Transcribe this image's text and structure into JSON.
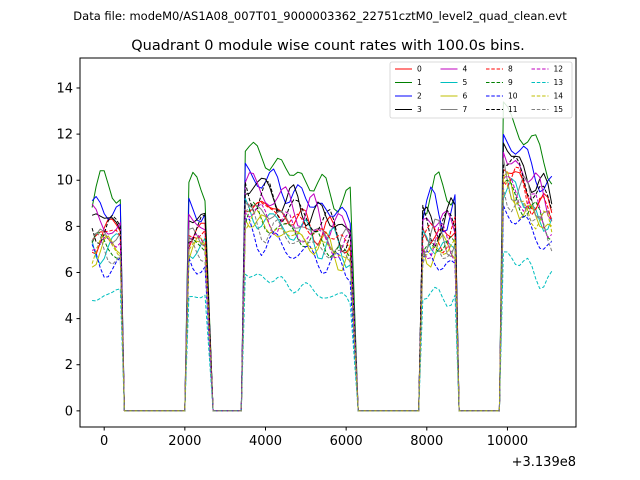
{
  "header": {
    "file_text": "Data file: modeM0/AS1A08_007T01_9000003362_22751cztM0_level2_quad_clean.evt"
  },
  "chart_data": {
    "type": "line",
    "title": "Quadrant 0 module wise count rates with 100.0s bins.",
    "xlabel": "",
    "ylabel": "",
    "x_offset_label": "+3.139e8",
    "xlim": [
      -600,
      11700
    ],
    "ylim": [
      -0.7,
      15.3
    ],
    "xticks": [
      0,
      2000,
      4000,
      6000,
      8000,
      10000
    ],
    "xtick_labels": [
      "0",
      "2000",
      "4000",
      "6000",
      "8000",
      "10000"
    ],
    "yticks": [
      0,
      2,
      4,
      6,
      8,
      10,
      12,
      14
    ],
    "ytick_labels": [
      "0",
      "2",
      "4",
      "6",
      "8",
      "10",
      "12",
      "14"
    ],
    "legend_position": "top-right",
    "segments": [
      [
        -300,
        400
      ],
      [
        2100,
        2500
      ],
      [
        3500,
        6100
      ],
      [
        7900,
        8700
      ],
      [
        9900,
        11100
      ]
    ],
    "zero_gaps": [
      [
        500,
        2000
      ],
      [
        2700,
        3400
      ],
      [
        6300,
        7800
      ],
      [
        8800,
        9800
      ]
    ],
    "series": [
      {
        "name": "0",
        "color": "#ff0000",
        "dash": "solid",
        "level": 7.7
      },
      {
        "name": "1",
        "color": "#008000",
        "dash": "solid",
        "level": 9.5
      },
      {
        "name": "2",
        "color": "#0000ff",
        "dash": "solid",
        "level": 8.7
      },
      {
        "name": "3",
        "color": "#000000",
        "dash": "solid",
        "level": 8.3
      },
      {
        "name": "4",
        "color": "#bf00bf",
        "dash": "solid",
        "level": 8.2
      },
      {
        "name": "5",
        "color": "#00bfbf",
        "dash": "solid",
        "level": 7.2
      },
      {
        "name": "6",
        "color": "#bfbf00",
        "dash": "solid",
        "level": 7.0
      },
      {
        "name": "7",
        "color": "#808080",
        "dash": "solid",
        "level": 7.5
      },
      {
        "name": "8",
        "color": "#ff0000",
        "dash": "dashed",
        "level": 7.6
      },
      {
        "name": "9",
        "color": "#008000",
        "dash": "dashed",
        "level": 7.1
      },
      {
        "name": "10",
        "color": "#0000ff",
        "dash": "dashed",
        "level": 6.4
      },
      {
        "name": "11",
        "color": "#000000",
        "dash": "dashed",
        "level": 8.0
      },
      {
        "name": "12",
        "color": "#bf00bf",
        "dash": "dashed",
        "level": 7.3
      },
      {
        "name": "13",
        "color": "#00bfbf",
        "dash": "dashed",
        "level": 5.0
      },
      {
        "name": "14",
        "color": "#bfbf00",
        "dash": "dashed",
        "level": 7.0
      },
      {
        "name": "15",
        "color": "#808080",
        "dash": "dashed",
        "level": 6.9
      }
    ]
  }
}
